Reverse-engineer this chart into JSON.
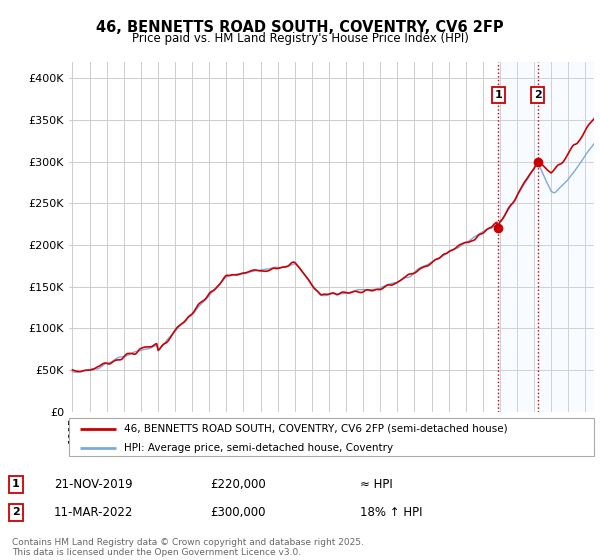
{
  "title_line1": "46, BENNETTS ROAD SOUTH, COVENTRY, CV6 2FP",
  "title_line2": "Price paid vs. HM Land Registry's House Price Index (HPI)",
  "background_color": "#ffffff",
  "plot_bg_color": "#ffffff",
  "grid_color": "#cccccc",
  "red_line_color": "#cc0000",
  "blue_line_color": "#7aabdb",
  "vline_color": "#cc0000",
  "highlight_rect_color": "#ddeeff",
  "ylim": [
    0,
    420000
  ],
  "yticks": [
    0,
    50000,
    100000,
    150000,
    200000,
    250000,
    300000,
    350000,
    400000
  ],
  "ytick_labels": [
    "£0",
    "£50K",
    "£100K",
    "£150K",
    "£200K",
    "£250K",
    "£300K",
    "£350K",
    "£400K"
  ],
  "legend_label_red": "46, BENNETTS ROAD SOUTH, COVENTRY, CV6 2FP (semi-detached house)",
  "legend_label_blue": "HPI: Average price, semi-detached house, Coventry",
  "transaction1_date": "21-NOV-2019",
  "transaction1_price": "£220,000",
  "transaction1_hpi": "≈ HPI",
  "transaction2_date": "11-MAR-2022",
  "transaction2_price": "£300,000",
  "transaction2_hpi": "18% ↑ HPI",
  "footer": "Contains HM Land Registry data © Crown copyright and database right 2025.\nThis data is licensed under the Open Government Licence v3.0.",
  "marker1_x": 2019.9,
  "marker1_y": 220000,
  "marker2_x": 2022.2,
  "marker2_y": 300000,
  "vline1_x": 2019.9,
  "vline2_x": 2022.2,
  "rect_x1": 2019.9,
  "rect_x2": 2025.5,
  "xmin": 1994.8,
  "xmax": 2025.5
}
